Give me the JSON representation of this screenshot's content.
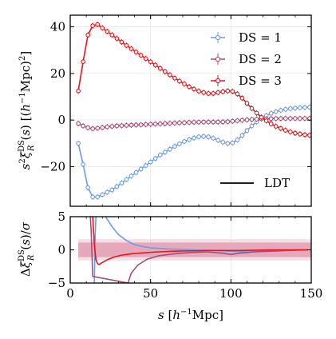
{
  "chart_data": [
    {
      "type": "line",
      "panel": "top",
      "ylabel": "s^2 ξ_R^DS(s) [(h^-1 Mpc)^2]",
      "xlim": [
        0,
        150
      ],
      "ylim": [
        -37,
        45
      ],
      "xticks": [
        0,
        50,
        100,
        150
      ],
      "yticks": [
        -20,
        0,
        20,
        40
      ],
      "ytick_labels": [
        "−20",
        "0",
        "20",
        "40"
      ],
      "grid": true,
      "legend_position": "top-right",
      "series": [
        {
          "name": "DS = 1",
          "color": "#6f9be0",
          "marker": "open-circle-with-errorbar",
          "x": [
            5,
            8,
            11,
            14,
            17,
            20,
            23,
            26,
            29,
            32,
            35,
            38,
            41,
            44,
            47,
            50,
            53,
            56,
            59,
            62,
            65,
            68,
            71,
            74,
            77,
            80,
            83,
            86,
            89,
            92,
            95,
            98,
            101,
            104,
            107,
            110,
            113,
            116,
            119,
            122,
            125,
            128,
            131,
            134,
            137,
            140,
            143,
            146,
            149
          ],
          "y": [
            -10,
            -19,
            -29,
            -33,
            -33,
            -32,
            -31,
            -30,
            -28.5,
            -27,
            -25.5,
            -24,
            -22.5,
            -21,
            -19.5,
            -18,
            -16.5,
            -15,
            -13.8,
            -12.5,
            -11.3,
            -10.2,
            -9.2,
            -8.4,
            -7.7,
            -7.2,
            -7,
            -7.2,
            -7.8,
            -8.7,
            -9.5,
            -10,
            -9.8,
            -8.5,
            -6.6,
            -4.5,
            -2.5,
            -0.8,
            0.7,
            1.9,
            2.9,
            3.6,
            4.2,
            4.6,
            4.9,
            5.1,
            5.3,
            5.4,
            5.5
          ]
        },
        {
          "name": "DS = 2",
          "color": "#a84d75",
          "marker": "open-circle-with-errorbar",
          "x": [
            5,
            8,
            11,
            14,
            17,
            20,
            23,
            26,
            29,
            32,
            35,
            38,
            41,
            44,
            47,
            50,
            53,
            56,
            59,
            62,
            65,
            68,
            71,
            74,
            77,
            80,
            83,
            86,
            89,
            92,
            95,
            98,
            101,
            104,
            107,
            110,
            113,
            116,
            119,
            122,
            125,
            128,
            131,
            134,
            137,
            140,
            143,
            146,
            149
          ],
          "y": [
            -1.5,
            -2.5,
            -3.3,
            -3.7,
            -3.5,
            -3.2,
            -2.9,
            -2.7,
            -2.5,
            -2.4,
            -2.3,
            -2.2,
            -2.1,
            -2,
            -1.9,
            -1.8,
            -1.7,
            -1.6,
            -1.5,
            -1.4,
            -1.3,
            -1.2,
            -1.1,
            -1,
            -0.95,
            -0.9,
            -0.85,
            -0.85,
            -0.85,
            -0.85,
            -0.8,
            -0.7,
            -0.5,
            -0.3,
            -0.1,
            0.1,
            0.25,
            0.4,
            0.5,
            0.55,
            0.6,
            0.65,
            0.65,
            0.7,
            0.7,
            0.7,
            0.7,
            0.7,
            0.7
          ]
        },
        {
          "name": "DS = 3",
          "color": "#e8141a",
          "marker": "open-circle-with-errorbar",
          "x": [
            5,
            8,
            11,
            14,
            17,
            20,
            23,
            26,
            29,
            32,
            35,
            38,
            41,
            44,
            47,
            50,
            53,
            56,
            59,
            62,
            65,
            68,
            71,
            74,
            77,
            80,
            83,
            86,
            89,
            92,
            95,
            98,
            101,
            104,
            107,
            110,
            113,
            116,
            119,
            122,
            125,
            128,
            131,
            134,
            137,
            140,
            143,
            146,
            149
          ],
          "y": [
            12.5,
            25,
            36.5,
            40.5,
            41,
            39.5,
            38,
            36.5,
            35,
            33.5,
            32,
            30.6,
            29.2,
            27.8,
            26.4,
            25,
            23.6,
            22.2,
            20.8,
            19.4,
            18,
            16.7,
            15.5,
            14.3,
            13.3,
            12.4,
            11.8,
            11.4,
            11.4,
            11.8,
            12.2,
            12.5,
            12.3,
            11.2,
            9.4,
            7.2,
            5,
            3,
            1.2,
            -0.3,
            -1.6,
            -2.7,
            -3.6,
            -4.4,
            -5.1,
            -5.6,
            -6,
            -6.3,
            -6.5
          ]
        }
      ],
      "legend_entries": [
        "DS = 1",
        "DS = 2",
        "DS = 3",
        "LDT"
      ]
    },
    {
      "type": "line",
      "panel": "bottom",
      "xlabel": "s [h^-1 Mpc]",
      "ylabel": "Δξ_R^DS(s)/σ",
      "xlim": [
        0,
        150
      ],
      "ylim": [
        -5,
        5
      ],
      "xticks": [
        0,
        50,
        100,
        150
      ],
      "xtick_labels": [
        "0",
        "50",
        "100",
        "150"
      ],
      "yticks": [
        -5,
        0,
        5
      ],
      "ytick_labels": [
        "−5",
        "0",
        "5"
      ],
      "grid": true,
      "bands": [
        {
          "color": "#e3a0b4",
          "x": [
            5,
            150
          ],
          "upper": [
            1.1,
            1.1
          ],
          "lower": [
            -1.1,
            -1.1
          ]
        }
      ],
      "series": [
        {
          "name": "DS = 1",
          "color": "#6f9be0",
          "x": [
            15,
            15.5,
            16,
            17,
            19,
            22,
            26,
            30,
            35,
            40,
            45,
            50,
            60,
            70,
            80,
            90,
            100,
            110,
            120,
            130,
            140,
            148
          ],
          "y": [
            -5,
            2,
            5,
            8,
            8,
            5,
            3.5,
            2.3,
            1.4,
            0.8,
            0.5,
            0.3,
            0.15,
            0.05,
            -0.05,
            -0.1,
            -0.2,
            -0.3,
            -0.2,
            -0.1,
            0,
            0
          ]
        },
        {
          "name": "DS = 2",
          "color": "#a84d75",
          "x": [
            12.5,
            13,
            14,
            36,
            38,
            42,
            48,
            55,
            65,
            75,
            85,
            95,
            100,
            105,
            115,
            125,
            135,
            148
          ],
          "y": [
            5,
            3,
            -4,
            -5,
            -3.5,
            -2.3,
            -1.4,
            -0.9,
            -0.6,
            -0.4,
            -0.3,
            -0.5,
            -0.7,
            -0.5,
            -0.3,
            -0.2,
            -0.1,
            0
          ]
        },
        {
          "name": "DS = 3",
          "color": "#e8141a",
          "x": [
            14,
            15,
            16,
            17,
            18,
            20,
            23,
            27,
            32,
            38,
            45,
            55,
            65,
            75,
            85,
            95,
            105,
            115,
            125,
            135,
            148
          ],
          "y": [
            5,
            0.8,
            -1.5,
            -2.1,
            -2.2,
            -1.9,
            -1.5,
            -1.1,
            -0.8,
            -0.6,
            -0.45,
            -0.3,
            -0.2,
            -0.15,
            -0.1,
            -0.1,
            -0.1,
            -0.05,
            0,
            0,
            0
          ]
        }
      ]
    }
  ]
}
